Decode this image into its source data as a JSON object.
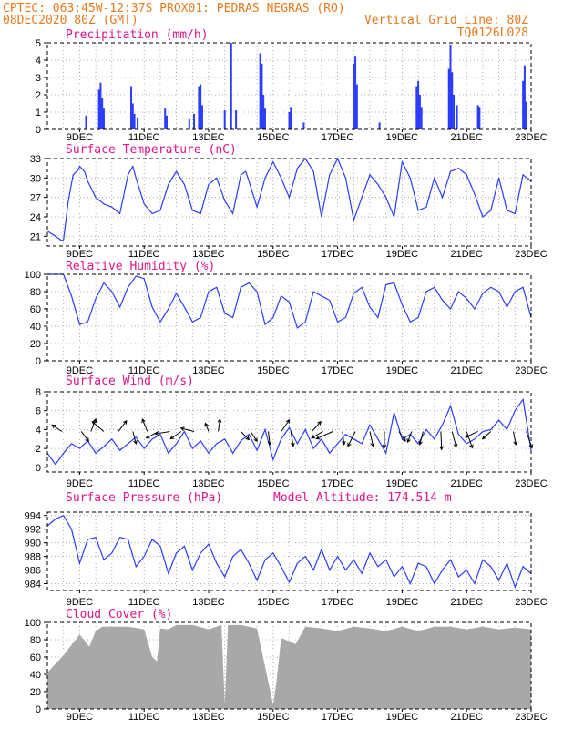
{
  "header": {
    "line1_left": "CPTEC:  063:45W-12:37S  PROX01: PEDRAS NEGRAS (RO)",
    "line2_left": "08DEC2020 80Z (GMT)",
    "line2_right": "Vertical Grid Line: 80Z",
    "line3_right": "TQ0126L028"
  },
  "x_ticks": [
    "9DEC",
    "11DEC",
    "13DEC",
    "15DEC",
    "17DEC",
    "19DEC",
    "21DEC",
    "23DEC"
  ],
  "colors": {
    "header": "#e87a1e",
    "title": "#e0158a",
    "series": "#2a3cff",
    "cloud": "#a8a8a8",
    "arrow": "#000000"
  },
  "chart_data": [
    {
      "type": "bar",
      "title": "Precipitation (mm/h)",
      "ylim": [
        0,
        5
      ],
      "yticks": [
        0,
        1,
        2,
        3,
        4,
        5
      ],
      "xlim": [
        8.0,
        23.0
      ],
      "events": [
        {
          "t": 9.2,
          "v": 0.8
        },
        {
          "t": 9.6,
          "v": 2.3
        },
        {
          "t": 9.65,
          "v": 2.7
        },
        {
          "t": 9.7,
          "v": 1.8
        },
        {
          "t": 9.75,
          "v": 1.2
        },
        {
          "t": 10.6,
          "v": 2.5
        },
        {
          "t": 10.65,
          "v": 1.5
        },
        {
          "t": 10.7,
          "v": 0.9
        },
        {
          "t": 10.8,
          "v": 0.7
        },
        {
          "t": 11.65,
          "v": 1.2
        },
        {
          "t": 11.7,
          "v": 0.8
        },
        {
          "t": 12.4,
          "v": 0.6
        },
        {
          "t": 12.55,
          "v": 0.9
        },
        {
          "t": 12.7,
          "v": 2.5
        },
        {
          "t": 12.75,
          "v": 2.6
        },
        {
          "t": 12.8,
          "v": 1.4
        },
        {
          "t": 13.5,
          "v": 1.1
        },
        {
          "t": 13.7,
          "v": 5.0
        },
        {
          "t": 13.85,
          "v": 1.1
        },
        {
          "t": 14.6,
          "v": 4.4
        },
        {
          "t": 14.65,
          "v": 3.8
        },
        {
          "t": 14.7,
          "v": 2.0
        },
        {
          "t": 14.75,
          "v": 1.2
        },
        {
          "t": 15.5,
          "v": 1.0
        },
        {
          "t": 15.55,
          "v": 1.3
        },
        {
          "t": 15.95,
          "v": 0.4
        },
        {
          "t": 17.5,
          "v": 3.8
        },
        {
          "t": 17.55,
          "v": 4.2
        },
        {
          "t": 17.6,
          "v": 2.6
        },
        {
          "t": 18.3,
          "v": 0.4
        },
        {
          "t": 19.45,
          "v": 2.5
        },
        {
          "t": 19.5,
          "v": 2.8
        },
        {
          "t": 19.55,
          "v": 2.0
        },
        {
          "t": 19.6,
          "v": 1.3
        },
        {
          "t": 20.45,
          "v": 3.5
        },
        {
          "t": 20.5,
          "v": 4.9
        },
        {
          "t": 20.55,
          "v": 3.3
        },
        {
          "t": 20.6,
          "v": 2.0
        },
        {
          "t": 20.7,
          "v": 1.4
        },
        {
          "t": 21.35,
          "v": 1.4
        },
        {
          "t": 21.4,
          "v": 1.3
        },
        {
          "t": 22.75,
          "v": 2.8
        },
        {
          "t": 22.8,
          "v": 3.7
        },
        {
          "t": 22.85,
          "v": 1.6
        }
      ]
    },
    {
      "type": "line",
      "title": "Surface Temperature (nC)",
      "ylim": [
        19.5,
        33
      ],
      "yticks": [
        21,
        24,
        27,
        30,
        33
      ],
      "xlim": [
        8.0,
        23.0
      ],
      "x": [
        8.0,
        8.25,
        8.45,
        8.5,
        8.65,
        8.8,
        8.95,
        9.0,
        9.15,
        9.25,
        9.5,
        9.75,
        10.0,
        10.25,
        10.5,
        10.65,
        10.75,
        11.0,
        11.25,
        11.5,
        11.75,
        12.0,
        12.25,
        12.5,
        12.75,
        13.0,
        13.25,
        13.5,
        13.75,
        14.0,
        14.15,
        14.25,
        14.5,
        14.75,
        15.0,
        15.25,
        15.5,
        15.75,
        16.0,
        16.25,
        16.5,
        16.75,
        17.0,
        17.25,
        17.5,
        17.75,
        18.0,
        18.25,
        18.5,
        18.75,
        19.0,
        19.25,
        19.5,
        19.75,
        20.0,
        20.25,
        20.5,
        20.75,
        21.0,
        21.25,
        21.5,
        21.75,
        22.0,
        22.25,
        22.5,
        22.75,
        23.0
      ],
      "y": [
        21.8,
        21.0,
        20.3,
        20.5,
        26.5,
        30.5,
        31.2,
        31.8,
        31.0,
        29.5,
        27.0,
        26.0,
        25.5,
        24.5,
        30.5,
        31.8,
        30.0,
        26.0,
        24.5,
        25.0,
        29.0,
        31.0,
        29.0,
        25.0,
        24.5,
        29.0,
        30.0,
        26.5,
        24.5,
        30.5,
        31.0,
        29.5,
        25.5,
        30.0,
        32.5,
        30.0,
        27.0,
        31.5,
        33.0,
        31.0,
        24.0,
        30.5,
        33.0,
        30.0,
        23.5,
        27.0,
        30.5,
        29.0,
        27.0,
        24.0,
        32.5,
        30.0,
        25.0,
        25.5,
        30.0,
        27.0,
        31.0,
        31.5,
        30.5,
        27.5,
        24.0,
        25.0,
        30.0,
        25.0,
        24.5,
        30.5,
        29.5
      ]
    },
    {
      "type": "line",
      "title": "Relative Humidity (%)",
      "ylim": [
        0,
        100
      ],
      "yticks": [
        0,
        20,
        40,
        60,
        80,
        100
      ],
      "xlim": [
        8.0,
        23.0
      ],
      "x": [
        8.0,
        8.5,
        8.75,
        9.0,
        9.25,
        9.5,
        9.75,
        10.0,
        10.25,
        10.5,
        10.75,
        11.0,
        11.25,
        11.5,
        11.75,
        12.0,
        12.25,
        12.5,
        12.75,
        13.0,
        13.25,
        13.5,
        13.75,
        14.0,
        14.25,
        14.5,
        14.75,
        15.0,
        15.25,
        15.5,
        15.75,
        16.0,
        16.25,
        16.5,
        16.75,
        17.0,
        17.25,
        17.5,
        17.75,
        18.0,
        18.25,
        18.5,
        18.75,
        19.0,
        19.25,
        19.5,
        19.75,
        20.0,
        20.25,
        20.5,
        20.75,
        21.0,
        21.25,
        21.5,
        21.75,
        22.0,
        22.25,
        22.5,
        22.75,
        23.0
      ],
      "y": [
        100,
        100,
        75,
        42,
        45,
        72,
        90,
        80,
        62,
        85,
        98,
        95,
        62,
        45,
        60,
        78,
        62,
        45,
        50,
        80,
        85,
        55,
        50,
        85,
        90,
        80,
        42,
        50,
        75,
        68,
        38,
        45,
        80,
        75,
        70,
        45,
        50,
        78,
        85,
        62,
        50,
        88,
        90,
        65,
        45,
        50,
        80,
        85,
        70,
        60,
        80,
        72,
        60,
        78,
        85,
        80,
        62,
        80,
        85,
        50
      ]
    },
    {
      "type": "line",
      "title": "Surface Wind (m/s)",
      "ylim": [
        -0.5,
        8
      ],
      "yticks": [
        0,
        2,
        4,
        6,
        8
      ],
      "xlim": [
        8.0,
        23.0
      ],
      "x": [
        8.0,
        8.25,
        8.5,
        8.75,
        9.0,
        9.25,
        9.5,
        9.75,
        10.0,
        10.25,
        10.5,
        10.75,
        11.0,
        11.25,
        11.5,
        11.75,
        12.0,
        12.25,
        12.5,
        12.75,
        13.0,
        13.25,
        13.5,
        13.75,
        14.0,
        14.25,
        14.5,
        14.75,
        15.0,
        15.25,
        15.5,
        15.75,
        16.0,
        16.25,
        16.5,
        16.75,
        17.0,
        17.25,
        17.5,
        17.75,
        18.0,
        18.25,
        18.5,
        18.75,
        19.0,
        19.25,
        19.5,
        19.75,
        20.0,
        20.25,
        20.5,
        20.75,
        21.0,
        21.25,
        21.5,
        21.75,
        22.0,
        22.25,
        22.5,
        22.75,
        23.0
      ],
      "y": [
        1.5,
        0.3,
        1.5,
        2.5,
        2.0,
        2.8,
        1.5,
        2.2,
        3.0,
        1.8,
        2.5,
        3.2,
        2.0,
        3.0,
        3.5,
        1.5,
        2.5,
        3.8,
        2.0,
        2.8,
        1.5,
        2.5,
        3.0,
        1.5,
        2.8,
        3.5,
        1.8,
        4.0,
        0.8,
        3.0,
        4.2,
        2.5,
        4.0,
        2.0,
        3.0,
        1.5,
        2.5,
        3.5,
        3.0,
        2.5,
        4.5,
        3.0,
        1.5,
        5.8,
        3.0,
        3.5,
        2.5,
        4.0,
        3.0,
        4.5,
        6.5,
        3.5,
        2.5,
        3.0,
        3.8,
        4.0,
        5.0,
        4.0,
        6.0,
        7.2,
        1.8
      ]
    },
    {
      "type": "line",
      "title": "Surface Pressure (hPa)",
      "subtitle": "Model Altitude: 174.514 m",
      "ylim": [
        983,
        994.5
      ],
      "yticks": [
        984,
        986,
        988,
        990,
        992,
        994
      ],
      "xlim": [
        8.0,
        23.0
      ],
      "x": [
        8.0,
        8.25,
        8.5,
        8.75,
        9.0,
        9.25,
        9.5,
        9.75,
        10.0,
        10.25,
        10.5,
        10.75,
        11.0,
        11.25,
        11.5,
        11.75,
        12.0,
        12.25,
        12.5,
        12.75,
        13.0,
        13.25,
        13.5,
        13.75,
        14.0,
        14.25,
        14.5,
        14.75,
        15.0,
        15.25,
        15.5,
        15.75,
        16.0,
        16.25,
        16.5,
        16.75,
        17.0,
        17.25,
        17.5,
        17.75,
        18.0,
        18.25,
        18.5,
        18.75,
        19.0,
        19.25,
        19.5,
        19.75,
        20.0,
        20.25,
        20.5,
        20.75,
        21.0,
        21.25,
        21.5,
        21.75,
        22.0,
        22.25,
        22.5,
        22.75,
        23.0
      ],
      "y": [
        992.5,
        993.5,
        994.0,
        992.0,
        987.0,
        990.5,
        990.8,
        987.5,
        988.5,
        990.8,
        990.5,
        986.5,
        988.0,
        990.5,
        989.5,
        985.5,
        988.5,
        989.5,
        986.0,
        988.5,
        989.8,
        987.0,
        985.0,
        988.0,
        989.0,
        987.0,
        984.5,
        987.5,
        988.5,
        986.5,
        984.2,
        987.0,
        988.0,
        986.0,
        989.0,
        986.0,
        988.0,
        986.0,
        987.5,
        985.5,
        988.5,
        986.5,
        987.5,
        985.0,
        986.5,
        984.0,
        987.0,
        986.5,
        984.0,
        986.0,
        987.5,
        985.0,
        986.0,
        984.0,
        987.5,
        986.5,
        984.5,
        987.0,
        983.5,
        986.5,
        985.5
      ]
    },
    {
      "type": "bar",
      "title": "Cloud Cover (%)",
      "ylim": [
        0,
        100
      ],
      "yticks": [
        0,
        20,
        40,
        60,
        80,
        100
      ],
      "xlim": [
        8.0,
        23.0
      ],
      "x": [
        8.0,
        8.5,
        9.0,
        9.3,
        9.5,
        9.7,
        10.0,
        10.5,
        11.0,
        11.25,
        11.4,
        11.5,
        11.75,
        12.0,
        12.5,
        13.0,
        13.4,
        13.5,
        13.6,
        14.0,
        14.5,
        15.0,
        15.1,
        15.25,
        15.5,
        15.7,
        16.0,
        16.5,
        17.0,
        17.5,
        18.0,
        18.5,
        19.0,
        19.5,
        20.0,
        20.5,
        21.0,
        21.5,
        22.0,
        22.5,
        23.0
      ],
      "y": [
        42,
        62,
        86,
        72,
        90,
        95,
        95,
        95,
        92,
        60,
        55,
        93,
        92,
        97,
        97,
        92,
        97,
        5,
        97,
        97,
        93,
        5,
        30,
        82,
        78,
        75,
        95,
        93,
        90,
        95,
        93,
        90,
        95,
        90,
        95,
        95,
        92,
        95,
        92,
        94,
        92
      ]
    }
  ],
  "wind_vectors": [
    {
      "t": 8.45,
      "u": -1.2,
      "v": 0.8
    },
    {
      "t": 9.05,
      "u": 0.9,
      "v": -1.2
    },
    {
      "t": 9.35,
      "u": 0.6,
      "v": 1.5
    },
    {
      "t": 9.75,
      "u": -1.4,
      "v": 1.2
    },
    {
      "t": 10.2,
      "u": 1.0,
      "v": 1.3
    },
    {
      "t": 10.65,
      "u": 0.4,
      "v": -1.5
    },
    {
      "t": 11.1,
      "u": -0.6,
      "v": 1.5
    },
    {
      "t": 11.45,
      "u": -1.5,
      "v": -0.8
    },
    {
      "t": 11.8,
      "u": -1.8,
      "v": -0.3
    },
    {
      "t": 12.15,
      "u": -1.3,
      "v": -0.9
    },
    {
      "t": 12.55,
      "u": -1.6,
      "v": 0.4
    },
    {
      "t": 13.0,
      "u": -0.4,
      "v": 1.0
    },
    {
      "t": 13.3,
      "u": 0.2,
      "v": 1.5
    },
    {
      "t": 14.0,
      "u": 1.0,
      "v": -1.0
    },
    {
      "t": 14.3,
      "u": 0.8,
      "v": -1.2
    },
    {
      "t": 14.85,
      "u": 0.2,
      "v": -1.6
    },
    {
      "t": 15.25,
      "u": 1.0,
      "v": 1.4
    },
    {
      "t": 15.55,
      "u": 0.3,
      "v": -1.8
    },
    {
      "t": 16.2,
      "u": 1.1,
      "v": 1.2
    },
    {
      "t": 16.55,
      "u": -1.4,
      "v": -0.8
    },
    {
      "t": 16.85,
      "u": -2.0,
      "v": -0.9
    },
    {
      "t": 17.15,
      "u": 0.2,
      "v": -1.6
    },
    {
      "t": 17.55,
      "u": -0.9,
      "v": -1.8
    },
    {
      "t": 18.0,
      "u": 0.4,
      "v": -1.8
    },
    {
      "t": 18.45,
      "u": 0.0,
      "v": -2.0
    },
    {
      "t": 18.9,
      "u": 0.8,
      "v": -1.2
    },
    {
      "t": 19.3,
      "u": -0.5,
      "v": -1.3
    },
    {
      "t": 19.65,
      "u": -0.4,
      "v": -1.6
    },
    {
      "t": 20.2,
      "u": 0.1,
      "v": -2.2
    },
    {
      "t": 20.55,
      "u": 0.5,
      "v": -1.9
    },
    {
      "t": 21.0,
      "u": 0.7,
      "v": -2.0
    },
    {
      "t": 21.35,
      "u": -1.5,
      "v": -0.7
    },
    {
      "t": 21.75,
      "u": -1.0,
      "v": -0.9
    },
    {
      "t": 22.45,
      "u": 0.3,
      "v": -1.6
    },
    {
      "t": 22.85,
      "u": 0.7,
      "v": -2.0
    }
  ]
}
